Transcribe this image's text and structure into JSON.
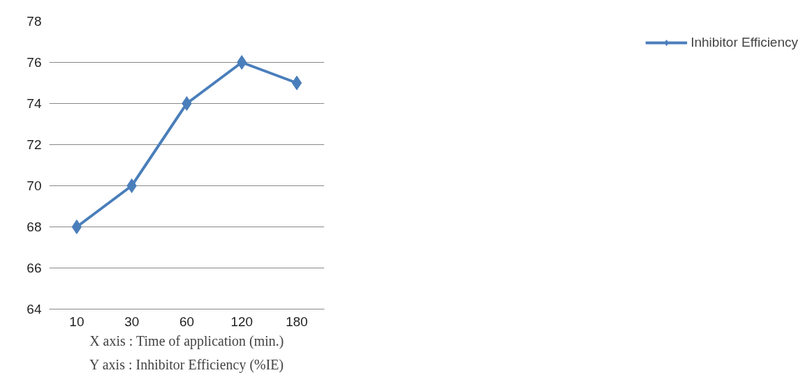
{
  "chart_data": {
    "type": "line",
    "categories": [
      "10",
      "30",
      "60",
      "120",
      "180"
    ],
    "series": [
      {
        "name": "Inhibitor Efficiency",
        "color": "#4a7ebb",
        "values": [
          68,
          70,
          74,
          76,
          75
        ]
      }
    ],
    "ylim": [
      64,
      78
    ],
    "yticks": [
      64,
      66,
      68,
      70,
      72,
      74,
      76,
      78
    ],
    "grid": "y",
    "legend": "right",
    "marker": "diamond",
    "annotations": [
      "X axis : Time of application (min.)",
      "Y axis : Inhibitor Efficiency (%IE)"
    ]
  }
}
